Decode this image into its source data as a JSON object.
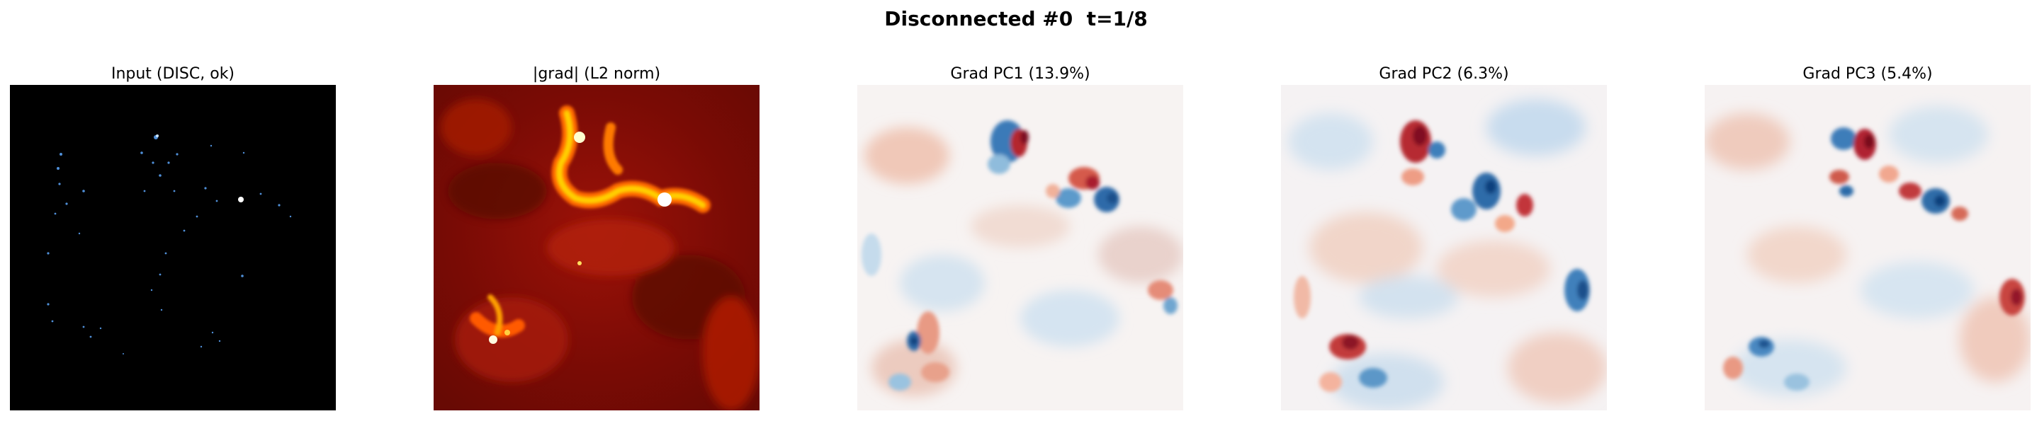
{
  "figure": {
    "title": "Disconnected #0  t=1/8"
  },
  "panels": [
    {
      "title": "Input (DISC, ok)",
      "colormap": "black-blue-white"
    },
    {
      "title": "|grad| (L2 norm)",
      "colormap": "hot"
    },
    {
      "title": "Grad PC1 (13.9%)",
      "colormap": "RdBu"
    },
    {
      "title": "Grad PC2 (6.3%)",
      "colormap": "RdBu"
    },
    {
      "title": "Grad PC3 (5.4%)",
      "colormap": "RdBu"
    }
  ]
}
